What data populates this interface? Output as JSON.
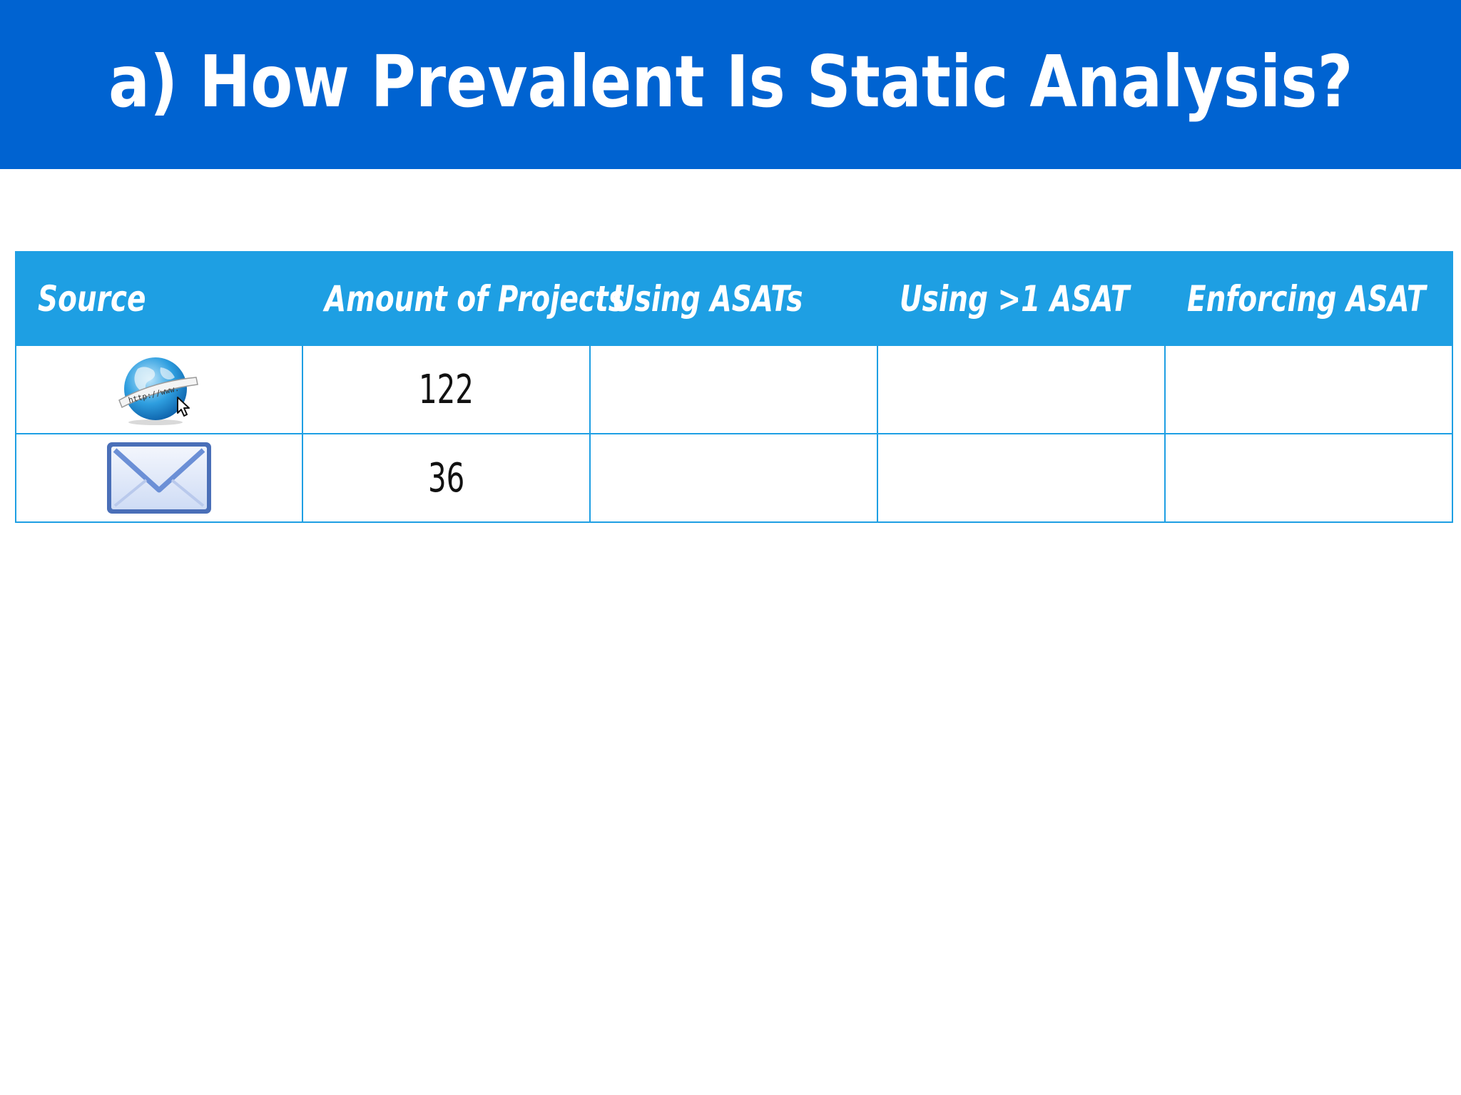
{
  "title": "a) How Prevalent Is Static Analysis?",
  "table": {
    "headers": [
      "Source",
      "Amount of Projects",
      "Using ASATs",
      "Using >1 ASAT",
      "Enforcing ASAT"
    ],
    "rows": [
      {
        "source_icon": "globe-http-icon",
        "amount": "122",
        "using_asats": "",
        "using_multiple": "",
        "enforcing": ""
      },
      {
        "source_icon": "envelope-icon",
        "amount": "36",
        "using_asats": "",
        "using_multiple": "",
        "enforcing": ""
      }
    ]
  },
  "colors": {
    "title_bar": "#0063d1",
    "header_row": "#1e9fe3",
    "grid": "#1e9fe3"
  }
}
